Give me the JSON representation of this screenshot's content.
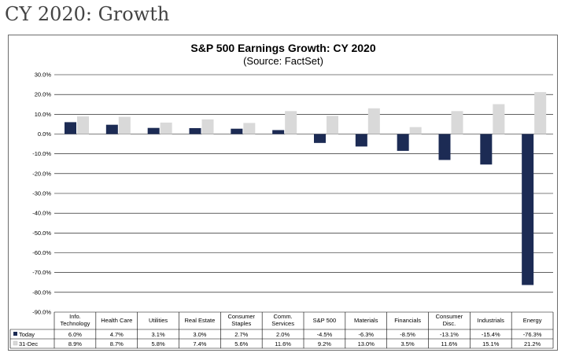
{
  "page": {
    "heading": "CY 2020: Growth"
  },
  "chart_data": {
    "type": "bar",
    "title": "S&P 500 Earnings Growth: CY 2020",
    "subtitle": "(Source: FactSet)",
    "categories": [
      [
        "Info.",
        "Technology"
      ],
      [
        "Health Care"
      ],
      [
        "Utilities"
      ],
      [
        "Real Estate"
      ],
      [
        "Consumer",
        "Staples"
      ],
      [
        "Comm.",
        "Services"
      ],
      [
        "S&P 500"
      ],
      [
        "Materials"
      ],
      [
        "Financials"
      ],
      [
        "Consumer",
        "Disc."
      ],
      [
        "Industrials"
      ],
      [
        "Energy"
      ]
    ],
    "series": [
      {
        "name": "Today",
        "color": "#1c2b54",
        "values": [
          6.0,
          4.7,
          3.1,
          3.0,
          2.7,
          2.0,
          -4.5,
          -6.3,
          -8.5,
          -13.1,
          -15.4,
          -76.3
        ],
        "labels": [
          "6.0%",
          "4.7%",
          "3.1%",
          "3.0%",
          "2.7%",
          "2.0%",
          "-4.5%",
          "-6.3%",
          "-8.5%",
          "-13.1%",
          "-15.4%",
          "-76.3%"
        ]
      },
      {
        "name": "31-Dec",
        "color": "#d9d9d9",
        "values": [
          8.9,
          8.7,
          5.8,
          7.4,
          5.6,
          11.6,
          9.2,
          13.0,
          3.5,
          11.6,
          15.1,
          21.2
        ],
        "labels": [
          "8.9%",
          "8.7%",
          "5.8%",
          "7.4%",
          "5.6%",
          "11.6%",
          "9.2%",
          "13.0%",
          "3.5%",
          "11.6%",
          "15.1%",
          "21.2%"
        ]
      }
    ],
    "ylim": [
      -90,
      30
    ],
    "yticks": [
      30,
      20,
      10,
      0,
      -10,
      -20,
      -30,
      -40,
      -50,
      -60,
      -70,
      -80,
      -90
    ],
    "ytick_labels": [
      "30.0%",
      "20.0%",
      "10.0%",
      "0.0%",
      "-10.0%",
      "-20.0%",
      "-30.0%",
      "-40.0%",
      "-50.0%",
      "-60.0%",
      "-70.0%",
      "-80.0%",
      "-90.0%"
    ],
    "grid": "horizontal",
    "legend": "data-table"
  }
}
